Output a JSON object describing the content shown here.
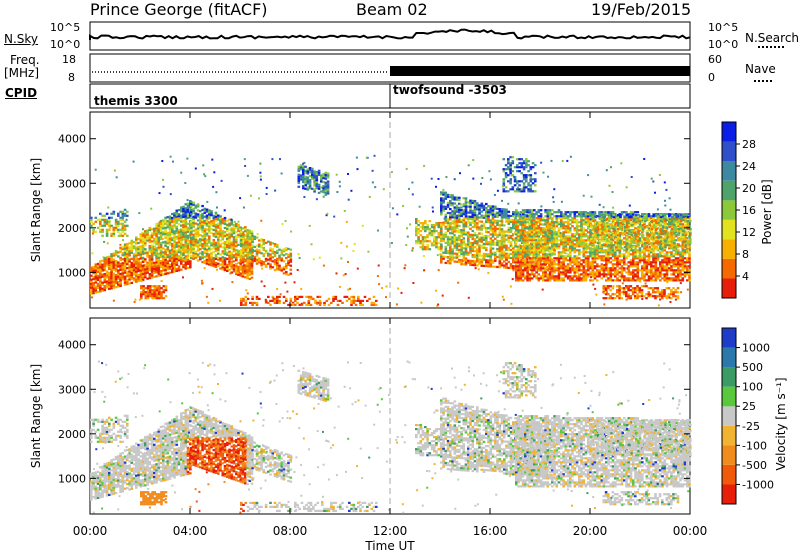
{
  "header": {
    "station": "Prince George (fitACF)",
    "beam": "Beam 02",
    "date": "19/Feb/2015"
  },
  "nsky_panel": {
    "label": "N.Sky",
    "left_ticks": [
      "10^5",
      "10^0"
    ],
    "right_ticks": [
      "10^5",
      "10^0"
    ],
    "right_label": "N.Search"
  },
  "freq_panel": {
    "label_line1": "Freq.",
    "label_line2": "[MHz]",
    "left_ticks": [
      "18",
      "8"
    ],
    "right_ticks": [
      "60",
      "0"
    ],
    "right_label": "Nave"
  },
  "cpid_panel": {
    "label": "CPID",
    "segments": [
      "themis 3300",
      "twofsound -3503"
    ]
  },
  "chart_data": [
    {
      "type": "heatmap",
      "name": "power",
      "ylabel": "Slant Range [km]",
      "yticks": [
        1000,
        2000,
        3000,
        4000
      ],
      "ylim": [
        200,
        4600
      ],
      "xlim": [
        0,
        24
      ],
      "colorbar_label": "Power [dB]",
      "colorbar_ticks": [
        "28",
        "24",
        "20",
        "16",
        "12",
        "8",
        "4"
      ],
      "colorbar_colors": [
        "#0a1ee6",
        "#2f50c8",
        "#3d8aa0",
        "#4da36a",
        "#8cc83c",
        "#e2e21e",
        "#f8b000",
        "#f56a00",
        "#e61e0a"
      ]
    },
    {
      "type": "heatmap",
      "name": "velocity",
      "ylabel": "Slant Range [km]",
      "yticks": [
        1000,
        2000,
        3000,
        4000
      ],
      "ylim": [
        200,
        4600
      ],
      "xlim": [
        0,
        24
      ],
      "xlabel": "Time UT",
      "xticks": [
        "00:00",
        "04:00",
        "08:00",
        "12:00",
        "16:00",
        "20:00",
        "00:00"
      ],
      "colorbar_label": "Velocity [m s⁻¹]",
      "colorbar_ticks": [
        "1000",
        "500",
        "100",
        "25",
        "-25",
        "-100",
        "-500",
        "-1000"
      ],
      "colorbar_colors": [
        "#1e3cc8",
        "#2d78aa",
        "#3c9a64",
        "#5ac83c",
        "#c8c8c8",
        "#f0b432",
        "#f08c1e",
        "#f05a0a",
        "#e61e0a"
      ]
    }
  ]
}
